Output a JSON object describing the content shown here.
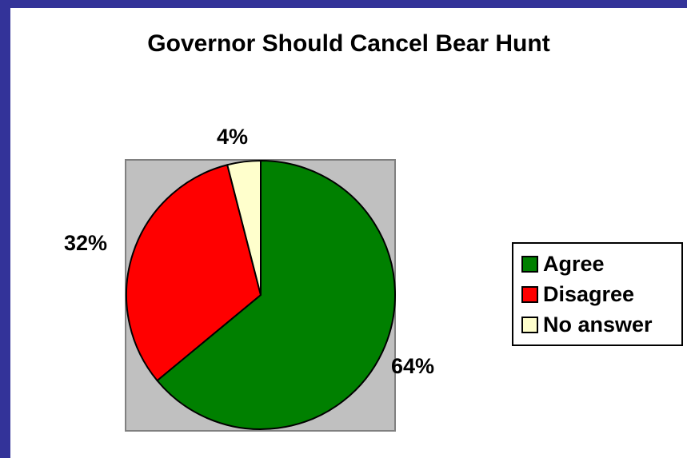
{
  "chart_data": {
    "type": "pie",
    "title": "Governor Should Cancel Bear Hunt",
    "categories": [
      "Agree",
      "Disagree",
      "No answer"
    ],
    "values": [
      64,
      32,
      4
    ],
    "value_labels": [
      "64%",
      "32%",
      "4%"
    ],
    "colors": [
      "#008000",
      "#ff0000",
      "#ffffcc"
    ],
    "plot_background": "#c0c0c0",
    "legend_placement": "right",
    "start_angle": "12 o'clock",
    "direction": "clockwise"
  },
  "theme": {
    "border_color": "#333399"
  }
}
